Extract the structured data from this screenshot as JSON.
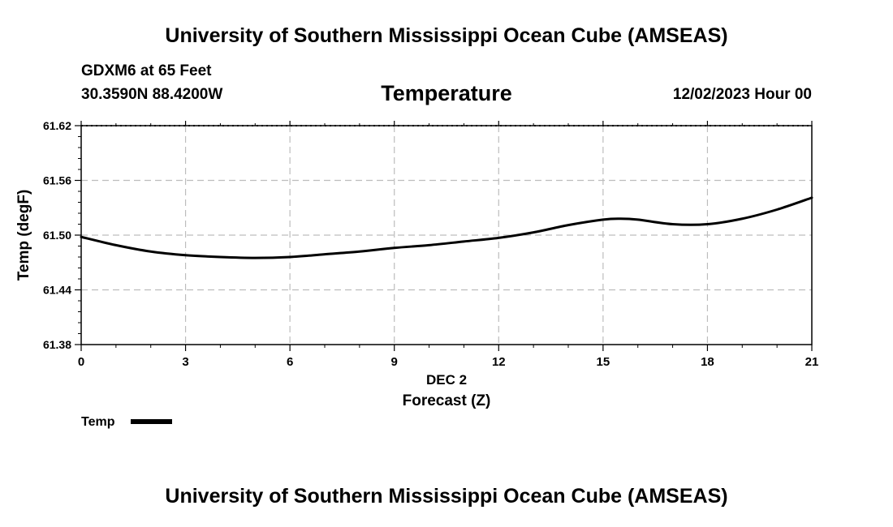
{
  "header": {
    "title": "University of Southern Mississippi Ocean Cube (AMSEAS)",
    "station": "GDXM6 at 65 Feet",
    "coords": "30.3590N  88.4200W",
    "variable": "Temperature",
    "datetime": "12/02/2023 Hour 00"
  },
  "footer": {
    "title": "University of Southern Mississippi Ocean Cube (AMSEAS)"
  },
  "chart_data": {
    "type": "line",
    "title": "Temperature",
    "xlabel": "Forecast (Z)",
    "xsublabel": "DEC 2",
    "ylabel": "Temp (degF)",
    "xlim": [
      0,
      21
    ],
    "ylim": [
      61.38,
      61.62
    ],
    "xticks": [
      0,
      3,
      6,
      9,
      12,
      15,
      18,
      21
    ],
    "yticks": [
      "61.38",
      "61.44",
      "61.50",
      "61.56",
      "61.62"
    ],
    "grid": true,
    "legend": "bottom-left",
    "series": [
      {
        "name": "Temp",
        "color": "#000000",
        "x": [
          0,
          1,
          2,
          3,
          4,
          5,
          6,
          7,
          8,
          9,
          10,
          11,
          12,
          13,
          14,
          15,
          15.5,
          16,
          17,
          18,
          19,
          20,
          21
        ],
        "values": [
          61.498,
          61.489,
          61.482,
          61.478,
          61.476,
          61.475,
          61.476,
          61.479,
          61.482,
          61.486,
          61.489,
          61.493,
          61.497,
          61.503,
          61.511,
          61.517,
          61.518,
          61.517,
          61.512,
          61.512,
          61.518,
          61.528,
          61.541
        ]
      }
    ]
  }
}
